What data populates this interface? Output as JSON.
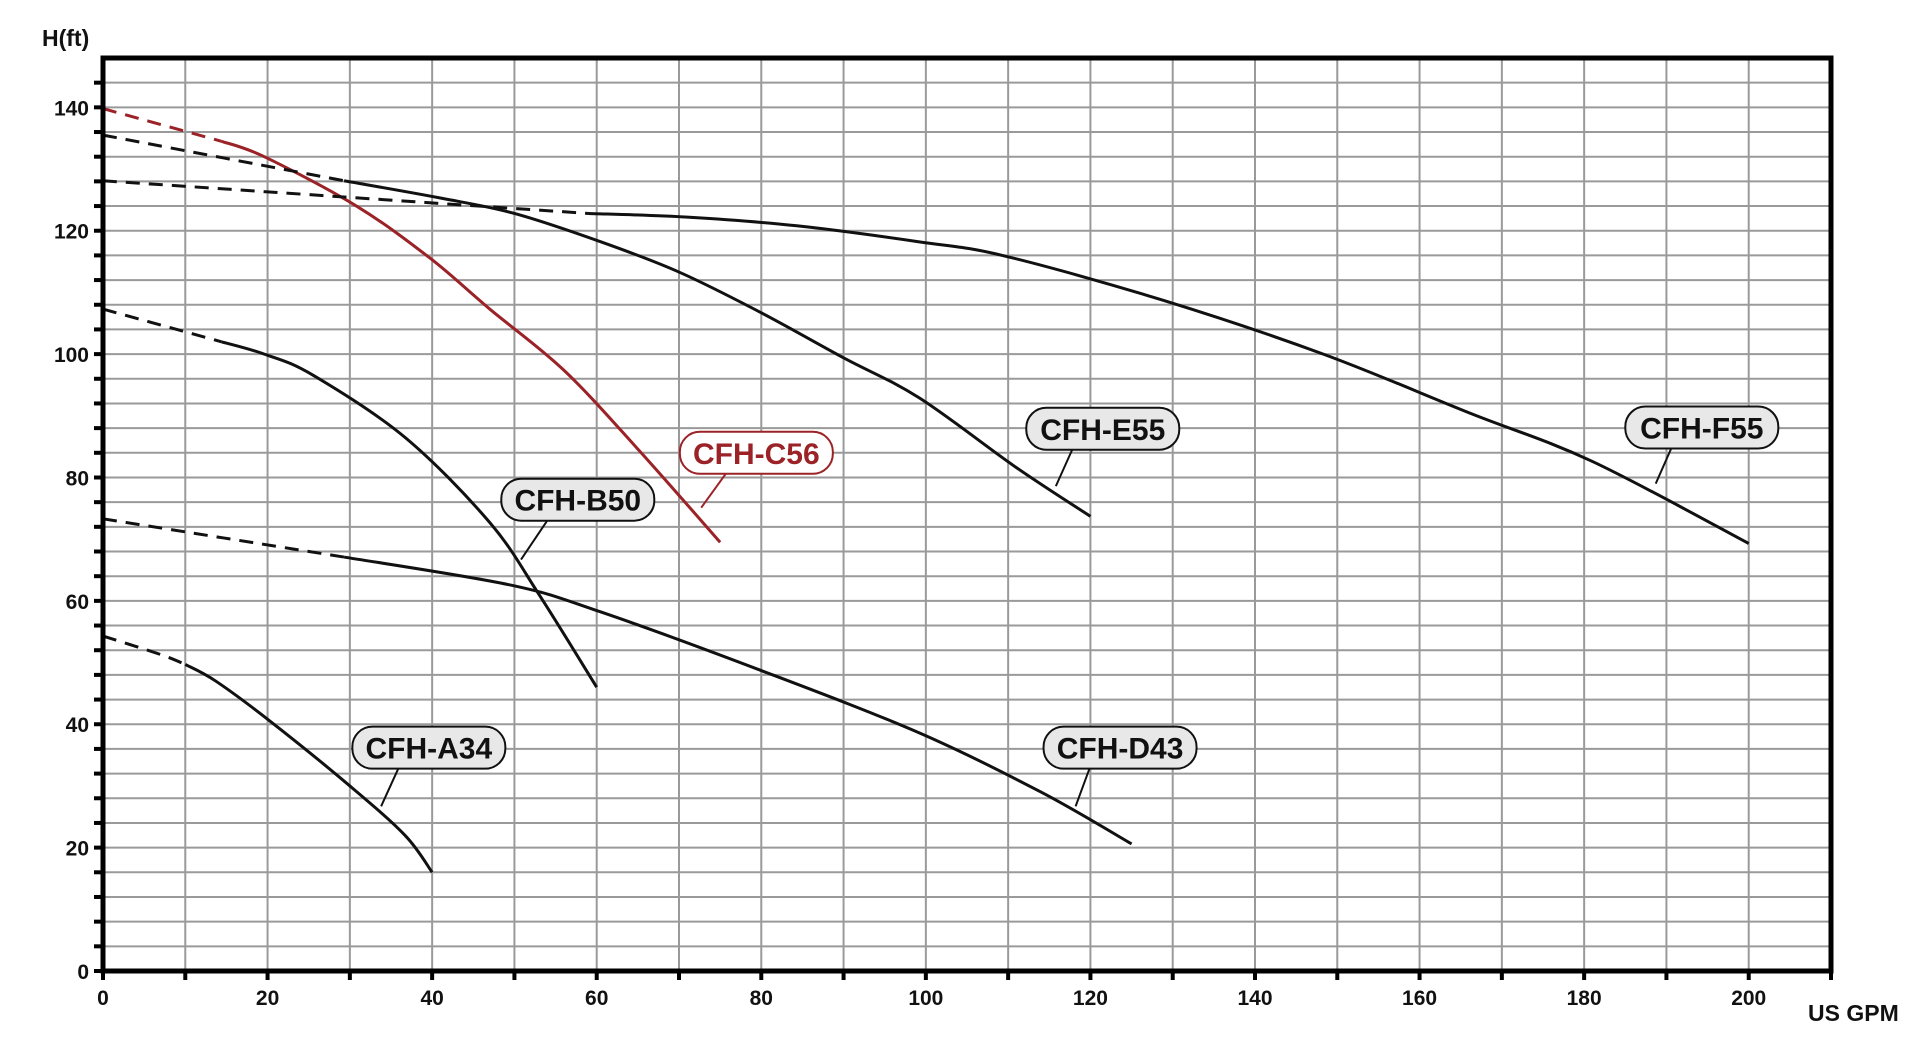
{
  "chart_data": {
    "type": "line",
    "ylabel": "H(ft)",
    "xlabel": "US GPM",
    "xlim": [
      0,
      210
    ],
    "ylim": [
      0,
      148
    ],
    "xticks": [
      0,
      20,
      40,
      60,
      80,
      100,
      120,
      140,
      160,
      180,
      200
    ],
    "yticks": [
      0,
      20,
      40,
      60,
      80,
      100,
      120,
      140
    ],
    "grid": true,
    "grid_x_step": 10,
    "grid_y_step": 4,
    "colors": {
      "axis": "#000000",
      "grid": "#9a9a9a",
      "default": "#111111",
      "highlight": "#9b2226",
      "label_fill": "#e8e8e8"
    },
    "series": [
      {
        "name": "CFH-A34",
        "color": "#111111",
        "dashed": [
          [
            0,
            54.3
          ],
          [
            7,
            51.3
          ],
          [
            10,
            49.7
          ]
        ],
        "solid": [
          [
            10,
            49.7
          ],
          [
            13.7,
            47
          ],
          [
            20.4,
            40.4
          ],
          [
            30,
            30
          ],
          [
            36.7,
            22
          ],
          [
            40,
            16
          ]
        ],
        "label_at": [
          39.6,
          36.2
        ],
        "leader_to": [
          33.8,
          26.7
        ]
      },
      {
        "name": "CFH-B50",
        "color": "#111111",
        "dashed": [
          [
            0,
            107.3
          ],
          [
            14.4,
            102
          ]
        ],
        "solid": [
          [
            14.4,
            102
          ],
          [
            19.6,
            100
          ],
          [
            25.5,
            96.6
          ],
          [
            36.7,
            86.5
          ],
          [
            47,
            72.7
          ],
          [
            53,
            61
          ],
          [
            60,
            46
          ]
        ],
        "label_at": [
          57.7,
          76.4
        ],
        "leader_to": [
          50.8,
          66.7
        ]
      },
      {
        "name": "CFH-C56",
        "color": "#9b2226",
        "dashed": [
          [
            0,
            139.8
          ],
          [
            14.4,
            134.5
          ]
        ],
        "solid": [
          [
            14.4,
            134.5
          ],
          [
            19.6,
            132
          ],
          [
            30.8,
            124
          ],
          [
            39.7,
            115.6
          ],
          [
            47,
            107.3
          ],
          [
            56,
            97.4
          ],
          [
            65,
            84.6
          ],
          [
            75,
            69.5
          ]
        ],
        "label_at": [
          79.4,
          84
        ],
        "leader_to": [
          72.7,
          75.1
        ]
      },
      {
        "name": "CFH-D43",
        "color": "#111111",
        "dashed": [
          [
            0,
            73.3
          ],
          [
            29.3,
            67.1
          ]
        ],
        "solid": [
          [
            29.3,
            67.1
          ],
          [
            49.4,
            62.6
          ],
          [
            60.5,
            58.2
          ],
          [
            80,
            48.7
          ],
          [
            99.2,
            38.6
          ],
          [
            114,
            29
          ],
          [
            125,
            20.6
          ]
        ],
        "label_at": [
          123.6,
          36.2
        ],
        "leader_to": [
          118.2,
          26.7
        ]
      },
      {
        "name": "CFH-E55",
        "color": "#111111",
        "dashed": [
          [
            0,
            135.5
          ],
          [
            29.3,
            128.1
          ]
        ],
        "solid": [
          [
            29.3,
            128.1
          ],
          [
            41,
            125.3
          ],
          [
            50,
            122.8
          ],
          [
            60.5,
            118.2
          ],
          [
            70,
            113.3
          ],
          [
            80,
            106.7
          ],
          [
            90,
            99.4
          ],
          [
            99.2,
            92.9
          ],
          [
            111,
            81.6
          ],
          [
            120,
            73.7
          ]
        ],
        "label_at": [
          121.5,
          87.9
        ],
        "leader_to": [
          115.8,
          78.6
        ]
      },
      {
        "name": "CFH-F55",
        "color": "#111111",
        "dashed": [
          [
            0,
            128.1
          ],
          [
            59,
            122.8
          ]
        ],
        "solid": [
          [
            59,
            122.8
          ],
          [
            71,
            122.2
          ],
          [
            84.3,
            120.8
          ],
          [
            99.2,
            118.2
          ],
          [
            109.6,
            115.9
          ],
          [
            128.9,
            108.7
          ],
          [
            148.3,
            100
          ],
          [
            166,
            90.5
          ],
          [
            181,
            82.6
          ],
          [
            200,
            69.3
          ]
        ],
        "label_at": [
          194.3,
          88.1
        ],
        "leader_to": [
          188.7,
          79
        ]
      }
    ]
  }
}
